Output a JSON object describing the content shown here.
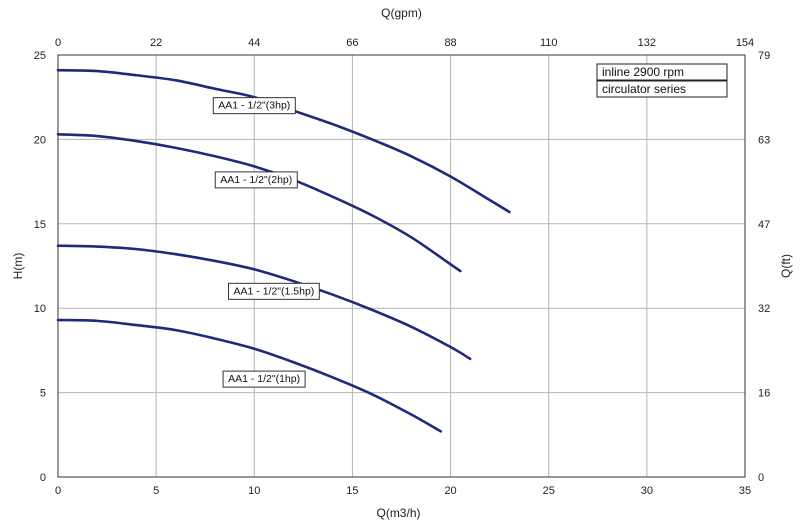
{
  "chart_data": {
    "type": "line",
    "xlabel_bottom": "Q(m3/h)",
    "xlabel_top": "Q(gpm)",
    "ylabel_left": "H(m)",
    "ylabel_right": "Q(ft)",
    "xlim": [
      0,
      35
    ],
    "ylim": [
      0,
      25
    ],
    "x_ticks_bottom": [
      "0",
      "5",
      "10",
      "15",
      "20",
      "25",
      "30",
      "35"
    ],
    "x_ticks_top": [
      "0",
      "22",
      "44",
      "66",
      "88",
      "110",
      "132",
      "154"
    ],
    "y_ticks_left": [
      "0",
      "5",
      "10",
      "15",
      "20",
      "25"
    ],
    "y_ticks_right": [
      "0",
      "16",
      "32",
      "47",
      "63",
      "79"
    ],
    "grid": true,
    "legend_lines": [
      "inline 2900 rpm",
      "circulator series"
    ],
    "series": [
      {
        "name": "AA1 - 1/2\"(3hp)",
        "color": "#1f2a7a",
        "x": [
          0,
          2,
          4,
          6,
          8,
          10,
          12,
          14,
          16,
          18,
          20,
          22,
          23
        ],
        "y": [
          24.1,
          24.05,
          23.8,
          23.5,
          23.0,
          22.5,
          21.7,
          20.9,
          20.0,
          19.0,
          17.8,
          16.4,
          15.7
        ]
      },
      {
        "name": "AA1 - 1/2\"(2hp)",
        "color": "#1f2a7a",
        "x": [
          0,
          2,
          4,
          6,
          8,
          10,
          12,
          14,
          16,
          18,
          20,
          20.5
        ],
        "y": [
          20.3,
          20.2,
          19.9,
          19.5,
          19.0,
          18.4,
          17.6,
          16.6,
          15.5,
          14.2,
          12.6,
          12.2
        ]
      },
      {
        "name": "AA1 - 1/2\"(1.5hp)",
        "color": "#1f2a7a",
        "x": [
          0,
          2,
          4,
          6,
          8,
          10,
          12,
          14,
          16,
          18,
          20,
          21
        ],
        "y": [
          13.7,
          13.65,
          13.5,
          13.2,
          12.8,
          12.3,
          11.6,
          10.8,
          9.9,
          8.9,
          7.7,
          7.0
        ]
      },
      {
        "name": "AA1 - 1/2\"(1hp)",
        "color": "#1f2a7a",
        "x": [
          0,
          2,
          4,
          6,
          8,
          10,
          12,
          14,
          16,
          18,
          19.5
        ],
        "y": [
          9.3,
          9.25,
          9.0,
          8.7,
          8.2,
          7.6,
          6.8,
          5.9,
          4.9,
          3.7,
          2.7
        ]
      }
    ],
    "labels": [
      {
        "text": "AA1 - 1/2\"(3hp)",
        "at_x": 10.0,
        "at_y": 22.0
      },
      {
        "text": "AA1 - 1/2\"(2hp)",
        "at_x": 10.1,
        "at_y": 17.6
      },
      {
        "text": "AA1 - 1/2\"(1.5hp)",
        "at_x": 11.0,
        "at_y": 11.0
      },
      {
        "text": "AA1 - 1/2\"(1hp)",
        "at_x": 10.5,
        "at_y": 5.8
      }
    ]
  }
}
